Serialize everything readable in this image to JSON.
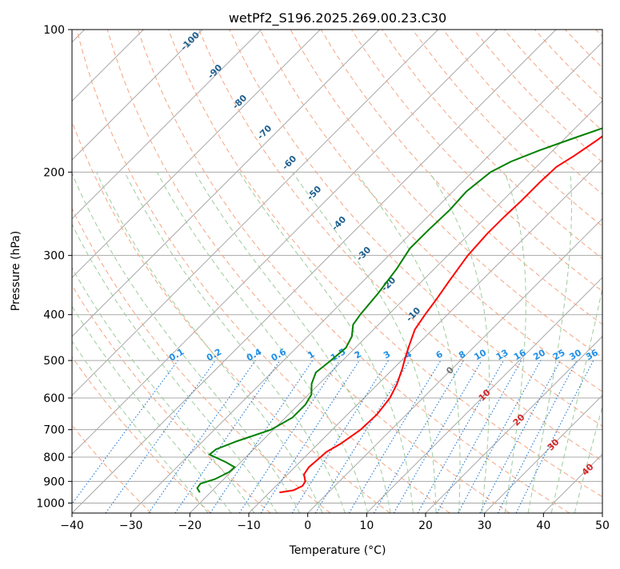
{
  "chart_data": {
    "type": "skew-t",
    "title": "wetPf2_S196.2025.269.00.23.C30",
    "xlabel": "Temperature (°C)",
    "ylabel": "Pressure (hPa)",
    "xlim": [
      -40,
      50
    ],
    "ylim": [
      1050,
      100
    ],
    "y_scale": "log",
    "x_ticks": [
      -40,
      -30,
      -20,
      -10,
      0,
      10,
      20,
      30,
      40,
      50
    ],
    "y_ticks": [
      100,
      200,
      300,
      400,
      500,
      600,
      700,
      800,
      900,
      1000
    ],
    "grid": true,
    "series": [
      {
        "color": "#ff0000",
        "points": [
          {
            "p": 950,
            "t": -8.3
          },
          {
            "p": 940,
            "t": -6.3
          },
          {
            "p": 920,
            "t": -5.5
          },
          {
            "p": 900,
            "t": -5.8
          },
          {
            "p": 870,
            "t": -7.2
          },
          {
            "p": 840,
            "t": -7.6
          },
          {
            "p": 810,
            "t": -7.4
          },
          {
            "p": 780,
            "t": -7.2
          },
          {
            "p": 750,
            "t": -6.2
          },
          {
            "p": 700,
            "t": -5.2
          },
          {
            "p": 650,
            "t": -5.0
          },
          {
            "p": 600,
            "t": -5.6
          },
          {
            "p": 560,
            "t": -6.8
          },
          {
            "p": 520,
            "t": -8.5
          },
          {
            "p": 500,
            "t": -9.5
          },
          {
            "p": 470,
            "t": -11.0
          },
          {
            "p": 430,
            "t": -13.0
          },
          {
            "p": 400,
            "t": -13.8
          },
          {
            "p": 370,
            "t": -14.5
          },
          {
            "p": 340,
            "t": -15.4
          },
          {
            "p": 300,
            "t": -16.6
          },
          {
            "p": 270,
            "t": -17.0
          },
          {
            "p": 250,
            "t": -17.0
          },
          {
            "p": 230,
            "t": -16.8
          },
          {
            "p": 210,
            "t": -16.8
          },
          {
            "p": 195,
            "t": -16.6
          },
          {
            "p": 185,
            "t": -15.5
          },
          {
            "p": 172,
            "t": -14.3
          },
          {
            "p": 160,
            "t": -13.4
          },
          {
            "p": 150,
            "t": -11.5
          },
          {
            "p": 140,
            "t": -8.5
          },
          {
            "p": 130,
            "t": -5.0
          },
          {
            "p": 120,
            "t": -2.0
          },
          {
            "p": 112,
            "t": 0.0
          },
          {
            "p": 105,
            "t": 1.5
          },
          {
            "p": 100,
            "t": 2.2
          }
        ]
      },
      {
        "color": "#008000",
        "points": [
          {
            "p": 950,
            "t": -21.8
          },
          {
            "p": 930,
            "t": -23.0
          },
          {
            "p": 910,
            "t": -23.2
          },
          {
            "p": 890,
            "t": -21.5
          },
          {
            "p": 860,
            "t": -20.3
          },
          {
            "p": 840,
            "t": -20.2
          },
          {
            "p": 820,
            "t": -22.5
          },
          {
            "p": 790,
            "t": -26.6
          },
          {
            "p": 770,
            "t": -26.4
          },
          {
            "p": 740,
            "t": -24.2
          },
          {
            "p": 700,
            "t": -20.4
          },
          {
            "p": 660,
            "t": -18.8
          },
          {
            "p": 620,
            "t": -18.8
          },
          {
            "p": 590,
            "t": -19.5
          },
          {
            "p": 560,
            "t": -21.3
          },
          {
            "p": 530,
            "t": -22.5
          },
          {
            "p": 500,
            "t": -22.0
          },
          {
            "p": 470,
            "t": -21.6
          },
          {
            "p": 445,
            "t": -22.5
          },
          {
            "p": 420,
            "t": -24.3
          },
          {
            "p": 400,
            "t": -24.8
          },
          {
            "p": 360,
            "t": -25.4
          },
          {
            "p": 320,
            "t": -26.4
          },
          {
            "p": 290,
            "t": -27.6
          },
          {
            "p": 265,
            "t": -27.6
          },
          {
            "p": 240,
            "t": -27.4
          },
          {
            "p": 220,
            "t": -27.7
          },
          {
            "p": 200,
            "t": -26.9
          },
          {
            "p": 190,
            "t": -25.2
          },
          {
            "p": 180,
            "t": -22.3
          },
          {
            "p": 170,
            "t": -18.7
          },
          {
            "p": 160,
            "t": -14.7
          },
          {
            "p": 150,
            "t": -12.8
          },
          {
            "p": 140,
            "t": -11.8
          },
          {
            "p": 130,
            "t": -10.0
          },
          {
            "p": 120,
            "t": -6.4
          },
          {
            "p": 110,
            "t": -3.0
          },
          {
            "p": 100,
            "t": -1.5
          }
        ]
      }
    ],
    "dry_adiabat_labels": [
      "-100",
      "-90",
      "-80",
      "-70",
      "-60",
      "-50",
      "-40",
      "-30",
      "-20",
      "-10"
    ],
    "mixing_ratio_labels": [
      "0.1",
      "0.2",
      "0.4",
      "0.6",
      "1",
      "1.5",
      "2",
      "3",
      "4",
      "6",
      "8",
      "10",
      "13",
      "16",
      "20",
      "25",
      "30",
      "36"
    ],
    "moist_adiabat_labels": [
      "0",
      "10",
      "20",
      "30",
      "40"
    ],
    "colors": {
      "temperature": "#ff0000",
      "dewpoint": "#008000",
      "dry_adiabat": "#f4a582",
      "moist_adiabat": "#9ccc9c",
      "mixing_ratio": "#1f77d4",
      "isotherm": "#a8a8a8",
      "isobar": "#a8a8a8",
      "dry_label": "#1f5f8f",
      "mixing_label": "#1f8fe8",
      "moist_label_zero": "#707070",
      "moist_label": "#d62728"
    }
  }
}
